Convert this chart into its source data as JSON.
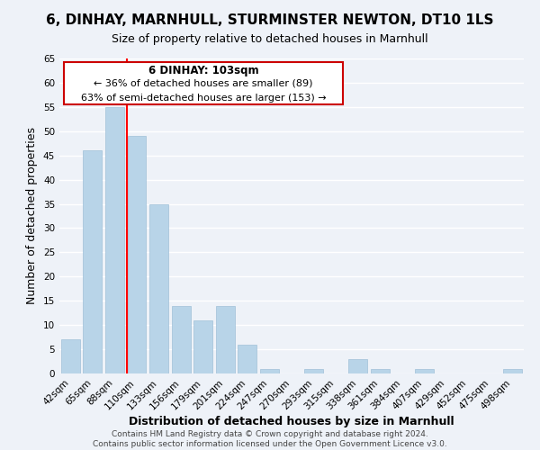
{
  "title": "6, DINHAY, MARNHULL, STURMINSTER NEWTON, DT10 1LS",
  "subtitle": "Size of property relative to detached houses in Marnhull",
  "xlabel": "Distribution of detached houses by size in Marnhull",
  "ylabel": "Number of detached properties",
  "bar_labels": [
    "42sqm",
    "65sqm",
    "88sqm",
    "110sqm",
    "133sqm",
    "156sqm",
    "179sqm",
    "201sqm",
    "224sqm",
    "247sqm",
    "270sqm",
    "293sqm",
    "315sqm",
    "338sqm",
    "361sqm",
    "384sqm",
    "407sqm",
    "429sqm",
    "452sqm",
    "475sqm",
    "498sqm"
  ],
  "bar_values": [
    7,
    46,
    55,
    49,
    35,
    14,
    11,
    14,
    6,
    1,
    0,
    1,
    0,
    3,
    1,
    0,
    1,
    0,
    0,
    0,
    1
  ],
  "bar_color": "#b8d4e8",
  "bar_edge_color": "#a0c0d8",
  "vline_color": "red",
  "vline_pos": 2.57,
  "ylim": [
    0,
    65
  ],
  "yticks": [
    0,
    5,
    10,
    15,
    20,
    25,
    30,
    35,
    40,
    45,
    50,
    55,
    60,
    65
  ],
  "annotation_title": "6 DINHAY: 103sqm",
  "annotation_line1": "← 36% of detached houses are smaller (89)",
  "annotation_line2": "63% of semi-detached houses are larger (153) →",
  "annotation_box_color": "#ffffff",
  "annotation_border_color": "#cc0000",
  "footer_line1": "Contains HM Land Registry data © Crown copyright and database right 2024.",
  "footer_line2": "Contains public sector information licensed under the Open Government Licence v3.0.",
  "background_color": "#eef2f8",
  "grid_color": "#ffffff",
  "title_fontsize": 11,
  "subtitle_fontsize": 9,
  "axis_label_fontsize": 9,
  "tick_fontsize": 7.5,
  "footer_fontsize": 6.5,
  "ann_title_fontsize": 8.5,
  "ann_text_fontsize": 8
}
